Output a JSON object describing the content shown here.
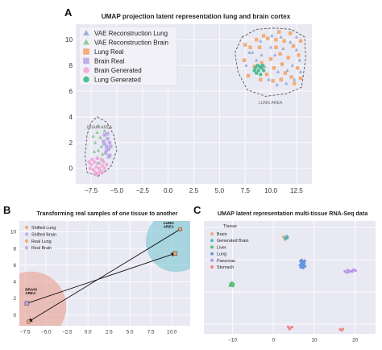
{
  "figure": {
    "colors": {
      "panel_bg": "#e9e9f3",
      "grid": "#ffffff",
      "blue": "#8fa9d6",
      "green": "#7fc78e",
      "orange": "#f2a56a",
      "lavender": "#b9a7e6",
      "pink": "#f3a6d6",
      "teal": "#3fb98a",
      "lung_circle": "#7cc7d0",
      "brain_circle": "#e9a08f"
    }
  },
  "chart_data": [
    {
      "panel_label": "A",
      "type": "scatter",
      "title": "UMAP projection latent representation lung and brain cortex",
      "xlim": [
        -9,
        14
      ],
      "ylim": [
        -1.2,
        11.2
      ],
      "xticks": [
        -7.5,
        -5.0,
        -2.5,
        0.0,
        2.5,
        5.0,
        7.5,
        10.0,
        12.5
      ],
      "xtick_labels": [
        "−7.5",
        "−5.0",
        "−2.5",
        "0.0",
        "2.5",
        "5.0",
        "7.5",
        "10.0",
        "12.5"
      ],
      "yticks": [
        0,
        2,
        4,
        6,
        8,
        10
      ],
      "ytick_labels": [
        "0",
        "2",
        "4",
        "6",
        "8",
        "10"
      ],
      "grid": true,
      "legend_position": "top-left",
      "legend": [
        {
          "label": "VAE Reconstruction Lung",
          "marker": "triangle",
          "color": "#8fa9d6"
        },
        {
          "label": "VAE Reconstruction Brain",
          "marker": "triangle",
          "color": "#7fc78e"
        },
        {
          "label": "Lung Real",
          "marker": "square",
          "color": "#f2a56a"
        },
        {
          "label": "Brain Real",
          "marker": "square",
          "color": "#b9a7e6"
        },
        {
          "label": "Brain Generated",
          "marker": "circle",
          "color": "#f3a6d6"
        },
        {
          "label": "Lung Generated",
          "marker": "circle",
          "color": "#3fb98a"
        }
      ],
      "annotations": [
        {
          "text": "BRAIN AREA",
          "x": -7.9,
          "y": 3.1
        },
        {
          "text": "LUNG AREA",
          "x": 8.8,
          "y": 5.0
        }
      ],
      "regions": [
        {
          "name": "brain",
          "points": [
            [
              -6.9,
              4.0
            ],
            [
              -6.0,
              3.6
            ],
            [
              -5.3,
              2.6
            ],
            [
              -5.0,
              1.4
            ],
            [
              -5.6,
              0.1
            ],
            [
              -6.8,
              -0.6
            ],
            [
              -7.9,
              -0.3
            ],
            [
              -8.1,
              1.0
            ],
            [
              -7.9,
              2.6
            ],
            [
              -7.5,
              3.6
            ]
          ]
        },
        {
          "name": "lung",
          "points": [
            [
              7.2,
              10.2
            ],
            [
              8.6,
              10.8
            ],
            [
              10.3,
              10.9
            ],
            [
              12.0,
              10.8
            ],
            [
              13.3,
              10.2
            ],
            [
              13.4,
              8.6
            ],
            [
              13.0,
              6.3
            ],
            [
              11.5,
              5.8
            ],
            [
              9.5,
              5.6
            ],
            [
              7.7,
              6.1
            ],
            [
              6.8,
              7.5
            ],
            [
              6.5,
              9.0
            ]
          ]
        }
      ],
      "series": [
        {
          "name": "VAE Reconstruction Lung",
          "marker": "triangle",
          "color": "#8fa9d6",
          "points": [
            [
              7.6,
              8.0
            ],
            [
              8.2,
              9.0
            ],
            [
              9.0,
              9.9
            ],
            [
              10.1,
              10.3
            ],
            [
              11.0,
              10.2
            ],
            [
              11.9,
              9.8
            ],
            [
              12.5,
              9.2
            ],
            [
              12.8,
              8.4
            ],
            [
              12.9,
              7.5
            ],
            [
              12.3,
              6.9
            ],
            [
              11.5,
              6.6
            ],
            [
              10.6,
              6.5
            ],
            [
              9.8,
              6.9
            ],
            [
              9.4,
              7.9
            ],
            [
              10.4,
              8.8
            ],
            [
              11.2,
              9.3
            ],
            [
              12.1,
              8.0
            ],
            [
              10.0,
              9.4
            ],
            [
              8.6,
              8.4
            ],
            [
              11.6,
              7.6
            ],
            [
              7.9,
              9.0
            ],
            [
              12.5,
              10.2
            ],
            [
              10.7,
              7.5
            ],
            [
              9.1,
              8.8
            ]
          ]
        },
        {
          "name": "VAE Reconstruction Brain",
          "marker": "triangle",
          "color": "#7fc78e",
          "points": [
            [
              -6.8,
              3.3
            ],
            [
              -6.9,
              2.8
            ],
            [
              -6.6,
              2.4
            ],
            [
              -7.1,
              2.0
            ],
            [
              -6.5,
              1.7
            ],
            [
              -6.8,
              1.4
            ],
            [
              -6.4,
              1.1
            ],
            [
              -6.9,
              0.8
            ],
            [
              -6.2,
              2.9
            ],
            [
              -7.2,
              1.3
            ],
            [
              -6.3,
              0.6
            ],
            [
              -6.7,
              0.4
            ],
            [
              -7.3,
              2.5
            ]
          ]
        },
        {
          "name": "Lung Real",
          "marker": "square",
          "color": "#f2a56a",
          "points": [
            [
              7.4,
              8.4
            ],
            [
              8.0,
              9.4
            ],
            [
              8.9,
              9.4
            ],
            [
              9.7,
              10.1
            ],
            [
              10.5,
              10.0
            ],
            [
              11.3,
              9.9
            ],
            [
              12.2,
              9.5
            ],
            [
              12.7,
              8.8
            ],
            [
              12.6,
              7.8
            ],
            [
              12.0,
              7.1
            ],
            [
              11.0,
              6.9
            ],
            [
              10.2,
              6.8
            ],
            [
              9.6,
              7.3
            ],
            [
              9.1,
              8.2
            ],
            [
              10.0,
              8.5
            ],
            [
              10.9,
              8.9
            ],
            [
              11.7,
              8.6
            ],
            [
              11.4,
              7.4
            ],
            [
              8.4,
              7.9
            ],
            [
              7.8,
              7.2
            ],
            [
              12.9,
              9.9
            ],
            [
              9.3,
              10.3
            ],
            [
              10.8,
              10.6
            ],
            [
              11.9,
              10.5
            ],
            [
              8.6,
              10.0
            ],
            [
              12.3,
              6.6
            ],
            [
              10.3,
              7.8
            ],
            [
              11.1,
              8.1
            ],
            [
              9.0,
              6.9
            ],
            [
              12.9,
              7.0
            ],
            [
              7.5,
              9.6
            ],
            [
              10.5,
              9.4
            ]
          ]
        },
        {
          "name": "Brain Real",
          "marker": "square",
          "color": "#b9a7e6",
          "points": [
            [
              -6.2,
              2.6
            ],
            [
              -5.9,
              2.3
            ],
            [
              -5.7,
              2.0
            ],
            [
              -6.0,
              1.7
            ],
            [
              -5.8,
              1.5
            ],
            [
              -6.1,
              1.2
            ],
            [
              -5.7,
              1.0
            ],
            [
              -6.3,
              2.1
            ],
            [
              -5.9,
              2.7
            ],
            [
              -5.6,
              1.7
            ],
            [
              -6.0,
              1.4
            ],
            [
              -5.8,
              0.9
            ],
            [
              -6.2,
              1.9
            ]
          ]
        },
        {
          "name": "Brain Generated",
          "marker": "circle",
          "color": "#f3a6d6",
          "points": [
            [
              -7.3,
              -0.1
            ],
            [
              -7.0,
              0.1
            ],
            [
              -6.7,
              0.0
            ],
            [
              -6.4,
              0.2
            ],
            [
              -6.9,
              0.4
            ],
            [
              -7.5,
              0.3
            ],
            [
              -6.6,
              -0.2
            ],
            [
              -7.2,
              0.5
            ],
            [
              -6.2,
              0.0
            ],
            [
              -7.6,
              0.0
            ],
            [
              -6.8,
              -0.4
            ],
            [
              -7.1,
              -0.3
            ],
            [
              -6.3,
              0.5
            ],
            [
              -7.4,
              0.7
            ],
            [
              -6.5,
              0.7
            ],
            [
              -6.0,
              0.3
            ],
            [
              -7.7,
              0.5
            ],
            [
              -6.9,
              0.8
            ],
            [
              -7.0,
              -0.5
            ],
            [
              -6.4,
              -0.3
            ]
          ]
        },
        {
          "name": "Lung Generated",
          "marker": "circle",
          "color": "#3fb98a",
          "points": [
            [
              8.5,
              7.8
            ],
            [
              8.8,
              7.6
            ],
            [
              9.1,
              7.8
            ],
            [
              8.7,
              8.0
            ],
            [
              9.0,
              7.3
            ],
            [
              9.3,
              7.6
            ],
            [
              8.9,
              7.9
            ],
            [
              8.6,
              7.4
            ],
            [
              9.2,
              8.0
            ],
            [
              8.4,
              7.6
            ]
          ]
        }
      ]
    },
    {
      "panel_label": "B",
      "type": "scatter",
      "title": "Transforming real samples of one tissue to another",
      "xlim": [
        -8.2,
        12.2
      ],
      "ylim": [
        -1.3,
        11.3
      ],
      "xticks": [
        -7.5,
        -5.0,
        -2.5,
        0.0,
        2.5,
        5.0,
        7.5,
        10.0
      ],
      "xtick_labels": [
        "−7.5",
        "−5.0",
        "−2.5",
        "0.0",
        "2.5",
        "5.0",
        "7.5",
        "10.0"
      ],
      "yticks": [
        0,
        2,
        4,
        6,
        8,
        10
      ],
      "ytick_labels": [
        "0",
        "2",
        "4",
        "6",
        "8",
        "10"
      ],
      "grid": true,
      "legend_position": "top-left",
      "legend": [
        {
          "label": "Shifted Lung",
          "marker": "circle",
          "color": "#f2a56a"
        },
        {
          "label": "Shifted Brain",
          "marker": "circle",
          "color": "#b9a7e6"
        },
        {
          "label": "Real Lung",
          "marker": "circle",
          "color": "#f2a56a"
        },
        {
          "label": "Real Brain",
          "marker": "circle",
          "color": "#b9a7e6"
        }
      ],
      "annotations": [
        {
          "text": "LUNG",
          "x": 9.0,
          "y": 10.9
        },
        {
          "text": "AREA",
          "x": 9.0,
          "y": 10.5
        },
        {
          "text": "BRAIN",
          "x": -7.5,
          "y": 2.9
        },
        {
          "text": "AREA",
          "x": -7.5,
          "y": 2.5
        }
      ],
      "regions": [
        {
          "name": "lung",
          "cx": 10.5,
          "cy": 8.8,
          "r": 3.6,
          "color": "#7cc7d0"
        },
        {
          "name": "brain",
          "cx": -6.8,
          "cy": 1.0,
          "r": 4.2,
          "color": "#e9a08f"
        }
      ],
      "points": [
        {
          "name": "Real Lung",
          "x": 11.0,
          "y": 10.3,
          "marker": "circle",
          "color": "#f2a56a"
        },
        {
          "name": "Shifted Brain",
          "x": 10.4,
          "y": 7.4,
          "marker": "square",
          "color": "#f2a56a"
        },
        {
          "name": "Real Brain",
          "x": -7.3,
          "y": 1.4,
          "marker": "square",
          "color": "#b9a7e6"
        },
        {
          "name": "Shifted Lung",
          "x": -7.1,
          "y": -0.8,
          "marker": "circle",
          "color": "#f2a56a"
        }
      ],
      "arrows": [
        {
          "from": [
            11.0,
            10.3
          ],
          "to": [
            -7.1,
            -0.8
          ]
        },
        {
          "from": [
            -7.3,
            1.4
          ],
          "to": [
            10.4,
            7.4
          ]
        }
      ]
    },
    {
      "panel_label": "C",
      "type": "scatter",
      "title": "UMAP latent representation multi-tissue RNA-Seq data",
      "xlim": [
        -17,
        25
      ],
      "ylim": [
        -13,
        22
      ],
      "xticks": [
        -10,
        0,
        10,
        20
      ],
      "xtick_labels": [
        "−10",
        "0",
        "10",
        "20"
      ],
      "grid": true,
      "legend_position": "top-left",
      "legend_title": "Tissue",
      "legend": [
        {
          "label": "Brain",
          "color": "#f2a56a"
        },
        {
          "label": "Generated Brain",
          "color": "#3fb8c9"
        },
        {
          "label": "Liver",
          "color": "#4bbb6b"
        },
        {
          "label": "Lung",
          "color": "#5b8fe0"
        },
        {
          "label": "Pancreas",
          "color": "#b48be6"
        },
        {
          "label": "Stomach",
          "color": "#ee7d7d"
        }
      ],
      "series": [
        {
          "name": "Brain",
          "color": "#f2a56a",
          "points": [
            [
              2.6,
              16.8
            ],
            [
              3.0,
              17.2
            ],
            [
              3.4,
              16.6
            ],
            [
              2.8,
              16.2
            ],
            [
              3.2,
              16.9
            ],
            [
              2.4,
              17.1
            ]
          ]
        },
        {
          "name": "Generated Brain",
          "color": "#3fb8c9",
          "points": [
            [
              3.1,
              16.5
            ],
            [
              3.5,
              16.9
            ],
            [
              3.3,
              17.3
            ],
            [
              2.9,
              16.7
            ]
          ]
        },
        {
          "name": "Liver",
          "color": "#4bbb6b",
          "points": [
            [
              -10.5,
              2.5
            ],
            [
              -10.1,
              2.9
            ],
            [
              -9.7,
              2.4
            ],
            [
              -10.3,
              2.1
            ],
            [
              -9.9,
              1.8
            ],
            [
              -10.6,
              1.9
            ]
          ]
        },
        {
          "name": "Lung",
          "color": "#5b8fe0",
          "points": [
            [
              6.6,
              9.6
            ],
            [
              7.0,
              9.2
            ],
            [
              7.4,
              9.5
            ],
            [
              6.8,
              8.8
            ],
            [
              7.2,
              8.5
            ],
            [
              7.6,
              8.9
            ],
            [
              6.5,
              8.3
            ],
            [
              7.0,
              7.9
            ],
            [
              7.5,
              8.2
            ],
            [
              6.9,
              9.9
            ],
            [
              7.7,
              9.7
            ],
            [
              6.7,
              7.6
            ],
            [
              7.3,
              7.4
            ],
            [
              7.8,
              7.9
            ]
          ]
        },
        {
          "name": "Pancreas",
          "color": "#b48be6",
          "points": [
            [
              17.5,
              6.4
            ],
            [
              18.2,
              6.8
            ],
            [
              18.9,
              6.5
            ],
            [
              19.6,
              6.9
            ],
            [
              20.1,
              6.6
            ],
            [
              18.5,
              6.2
            ],
            [
              19.3,
              6.3
            ],
            [
              17.9,
              6.0
            ]
          ]
        },
        {
          "name": "Stomach",
          "color": "#ee7d7d",
          "points": [
            [
              3.6,
              -10.8
            ],
            [
              4.1,
              -11.2
            ],
            [
              4.6,
              -10.9
            ],
            [
              3.9,
              -11.5
            ],
            [
              16.3,
              -11.6
            ],
            [
              16.7,
              -11.9
            ],
            [
              17.0,
              -11.5
            ]
          ]
        }
      ]
    }
  ]
}
